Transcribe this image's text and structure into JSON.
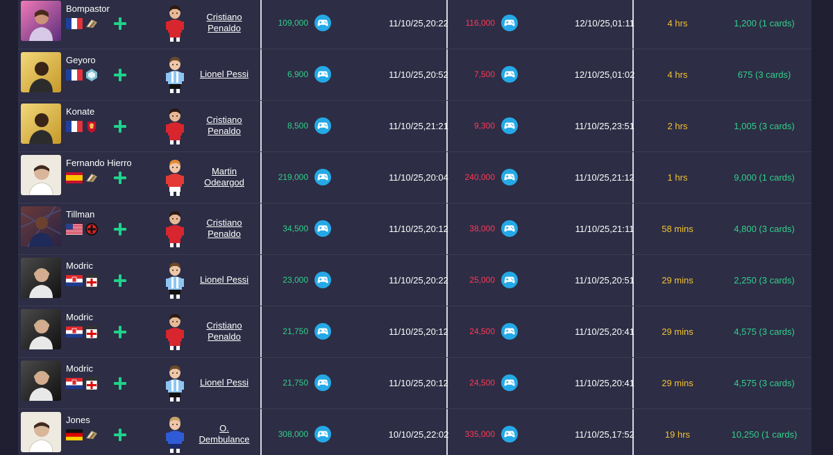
{
  "rows": [
    {
      "player": "Bompastor",
      "nation": "fr",
      "club": "icon-badge",
      "card": "pink",
      "user": "Cristiano Penaldo",
      "avatar": "ronaldo",
      "buy": "109,000",
      "buy_date": "11/10/25,20:22",
      "sell": "116,000",
      "sell_date": "12/10/25,01:11",
      "duration": "4 hrs",
      "profit": "1,200 (1 cards)"
    },
    {
      "player": "Geyoro",
      "nation": "fr",
      "club": "hex-badge",
      "card": "gold",
      "user": "Lionel Pessi",
      "avatar": "messi",
      "buy": "6,900",
      "buy_date": "11/10/25,20:52",
      "sell": "7,500",
      "sell_date": "12/10/25,01:02",
      "duration": "4 hrs",
      "profit": "675 (3 cards)"
    },
    {
      "player": "Konate",
      "nation": "fr",
      "club": "liverpool-badge",
      "card": "gold",
      "user": "Cristiano Penaldo",
      "avatar": "ronaldo",
      "buy": "8,500",
      "buy_date": "11/10/25,21:21",
      "sell": "9,300",
      "sell_date": "11/10/25,23:51",
      "duration": "2 hrs",
      "profit": "1,005 (3 cards)"
    },
    {
      "player": "Fernando Hierro",
      "nation": "es",
      "club": "icon-badge",
      "card": "white",
      "user": "Martin Odeargod",
      "avatar": "odegaard",
      "buy": "219,000",
      "buy_date": "11/10/25,20:04",
      "sell": "240,000",
      "sell_date": "11/10/25,21:12",
      "duration": "1 hrs",
      "profit": "9,000 (1 cards)"
    },
    {
      "player": "Tillman",
      "nation": "us",
      "club": "leverkusen-badge",
      "card": "dark",
      "user": "Cristiano Penaldo",
      "avatar": "ronaldo",
      "buy": "34,500",
      "buy_date": "11/10/25,20:12",
      "sell": "38,000",
      "sell_date": "11/10/25,21:11",
      "duration": "58 mins",
      "profit": "4,800 (3 cards)"
    },
    {
      "player": "Modric",
      "nation": "hr",
      "club": "realmadrid-badge",
      "card": "black",
      "user": "Lionel Pessi",
      "avatar": "messi",
      "buy": "23,000",
      "buy_date": "11/10/25,20:22",
      "sell": "25,000",
      "sell_date": "11/10/25,20:51",
      "duration": "29 mins",
      "profit": "2,250 (3 cards)"
    },
    {
      "player": "Modric",
      "nation": "hr",
      "club": "realmadrid-badge",
      "card": "black",
      "user": "Cristiano Penaldo",
      "avatar": "ronaldo",
      "buy": "21,750",
      "buy_date": "11/10/25,20:12",
      "sell": "24,500",
      "sell_date": "11/10/25,20:41",
      "duration": "29 mins",
      "profit": "4,575 (3 cards)"
    },
    {
      "player": "Modric",
      "nation": "hr",
      "club": "realmadrid-badge",
      "card": "black",
      "user": "Lionel Pessi",
      "avatar": "messi",
      "buy": "21,750",
      "buy_date": "11/10/25,20:12",
      "sell": "24,500",
      "sell_date": "11/10/25,20:41",
      "duration": "29 mins",
      "profit": "4,575 (3 cards)"
    },
    {
      "player": "Jones",
      "nation": "de",
      "club": "icon-badge",
      "card": "white",
      "user": "O. Dembulance",
      "avatar": "dembele",
      "buy": "308,000",
      "buy_date": "10/10/25,22:02",
      "sell": "335,000",
      "sell_date": "11/10/25,17:52",
      "duration": "19 hrs",
      "profit": "10,250 (1 cards)"
    }
  ],
  "colors": {
    "buy": "#31d18c",
    "sell": "#ff3a57",
    "duration": "#f3c232",
    "profit": "#31d18c",
    "controller": "#25a9e6"
  }
}
